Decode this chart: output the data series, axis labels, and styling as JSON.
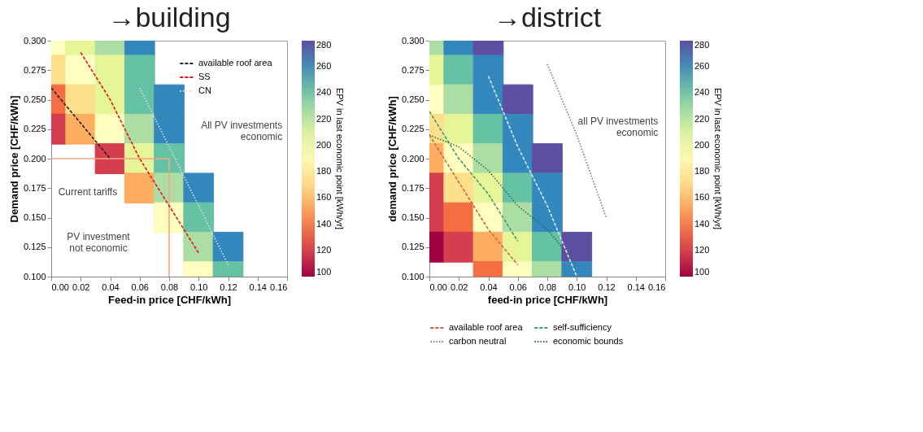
{
  "chart_data": [
    {
      "type": "scatter",
      "title": "→building",
      "xlabel": "Feed-in price [CHF/kWh]",
      "ylabel": "Demand price [CHF/kWh]",
      "clabel": "EPV in last economic point [kWh/yr]",
      "xlim": [
        0,
        0.16
      ],
      "ylim": [
        0.1,
        0.3
      ],
      "xticks": [
        {
          "value": 0,
          "label": "0.00"
        },
        {
          "value": 0.02,
          "label": "0.02"
        },
        {
          "value": 0.04,
          "label": "0.04"
        },
        {
          "value": 0.06,
          "label": "0.06"
        },
        {
          "value": 0.08,
          "label": "0.08"
        },
        {
          "value": 0.1,
          "label": "0.10"
        },
        {
          "value": 0.12,
          "label": "0.12"
        },
        {
          "value": 0.14,
          "label": "0.14"
        },
        {
          "value": 0.16,
          "label": "0.16"
        }
      ],
      "yticks": [
        {
          "value": 0.1,
          "label": "0.100"
        },
        {
          "value": 0.125,
          "label": "0.125"
        },
        {
          "value": 0.15,
          "label": "0.150"
        },
        {
          "value": 0.175,
          "label": "0.175"
        },
        {
          "value": 0.2,
          "label": "0.200"
        },
        {
          "value": 0.225,
          "label": "0.225"
        },
        {
          "value": 0.25,
          "label": "0.250"
        },
        {
          "value": 0.275,
          "label": "0.275"
        },
        {
          "value": 0.3,
          "label": "0.300"
        }
      ],
      "clim": [
        100,
        280
      ],
      "cticks": [
        100,
        120,
        140,
        160,
        180,
        200,
        220,
        240,
        260,
        280
      ],
      "marker": "square",
      "x": [
        0,
        0.02,
        0.04,
        0.06,
        0,
        0.02,
        0.04,
        0.06,
        0,
        0.02,
        0.04,
        0.06,
        0.08,
        0,
        0.02,
        0.04,
        0.06,
        0.08,
        0.04,
        0.06,
        0.08,
        0.06,
        0.08,
        0.1,
        0.08,
        0.1,
        0.1,
        0.12,
        0.1,
        0.12
      ],
      "values": [
        0.3,
        0.3,
        0.3,
        0.3,
        0.275,
        0.275,
        0.275,
        0.275,
        0.25,
        0.25,
        0.25,
        0.25,
        0.25,
        0.225,
        0.225,
        0.225,
        0.225,
        0.225,
        0.2,
        0.2,
        0.2,
        0.175,
        0.175,
        0.175,
        0.15,
        0.15,
        0.125,
        0.125,
        0.1,
        0.1
      ],
      "cvalues": [
        190,
        208,
        226,
        262,
        172,
        190,
        208,
        244,
        136,
        172,
        208,
        244,
        262,
        118,
        154,
        190,
        226,
        262,
        118,
        208,
        244,
        154,
        226,
        262,
        190,
        244,
        226,
        262,
        190,
        244
      ],
      "colors": [
        "#ffffbf",
        "#e6f598",
        "#abdda4",
        "#3288bd",
        "#fee08b",
        "#ffffbf",
        "#e6f598",
        "#66c2a5",
        "#f46d43",
        "#fee08b",
        "#e6f598",
        "#66c2a5",
        "#3288bd",
        "#d53e4f",
        "#fdae61",
        "#ffffbf",
        "#abdda4",
        "#3288bd",
        "#d53e4f",
        "#e6f598",
        "#66c2a5",
        "#fdae61",
        "#abdda4",
        "#3288bd",
        "#ffffbf",
        "#66c2a5",
        "#abdda4",
        "#3288bd",
        "#ffffbf",
        "#66c2a5"
      ],
      "series": [
        {
          "type": "line",
          "name": "available roof area",
          "color": "#222222",
          "line_style": "dashed",
          "marker": "none",
          "x": [
            0,
            0.02,
            0.04
          ],
          "values": [
            0.26,
            0.23,
            0.2
          ]
        },
        {
          "type": "line",
          "name": "SS",
          "color": "#ee1111",
          "line_style": "dashed",
          "marker": "none",
          "x": [
            0.02,
            0.04,
            0.06,
            0.08,
            0.1
          ],
          "values": [
            0.29,
            0.25,
            0.2,
            0.16,
            0.12
          ]
        },
        {
          "type": "line",
          "name": "CN",
          "color": "#dddddd",
          "line_style": "dotted",
          "marker": "none",
          "x": [
            0.06,
            0.08,
            0.1,
            0.12
          ],
          "values": [
            0.26,
            0.21,
            0.16,
            0.11
          ]
        },
        {
          "type": "line",
          "color": "#f4a582",
          "line_style": "solid",
          "marker": "none",
          "x": [
            0,
            0.08,
            0.08
          ],
          "values": [
            0.2,
            0.2,
            0.1
          ]
        }
      ],
      "annotations": [
        "All PV investments\neconomic",
        "Current tariffs",
        "PV investment\nnot economic"
      ],
      "legend": "top right"
    },
    {
      "type": "scatter",
      "title": "→district",
      "xlabel": "feed-in price [CHF/kWh]",
      "ylabel": "demand price [CHF/kWh]",
      "clabel": "EPV in last economic point [kWh/yr]",
      "xlim": [
        0,
        0.16
      ],
      "ylim": [
        0.1,
        0.3
      ],
      "xticks": [
        {
          "value": 0,
          "label": "0.00"
        },
        {
          "value": 0.02,
          "label": "0.02"
        },
        {
          "value": 0.04,
          "label": "0.04"
        },
        {
          "value": 0.06,
          "label": "0.06"
        },
        {
          "value": 0.08,
          "label": "0.08"
        },
        {
          "value": 0.1,
          "label": "0.10"
        },
        {
          "value": 0.12,
          "label": "0.12"
        },
        {
          "value": 0.14,
          "label": "0.14"
        },
        {
          "value": 0.16,
          "label": "0.16"
        }
      ],
      "yticks": [
        {
          "value": 0.1,
          "label": "0.100"
        },
        {
          "value": 0.125,
          "label": "0.125"
        },
        {
          "value": 0.15,
          "label": "0.150"
        },
        {
          "value": 0.175,
          "label": "0.175"
        },
        {
          "value": 0.2,
          "label": "0.200"
        },
        {
          "value": 0.225,
          "label": "0.225"
        },
        {
          "value": 0.25,
          "label": "0.250"
        },
        {
          "value": 0.275,
          "label": "0.275"
        },
        {
          "value": 0.3,
          "label": "0.300"
        }
      ],
      "clim": [
        100,
        280
      ],
      "cticks": [
        100,
        120,
        140,
        160,
        180,
        200,
        220,
        240,
        260,
        280
      ],
      "marker": "square",
      "x": [
        0,
        0.02,
        0.04,
        0,
        0.02,
        0.04,
        0,
        0.02,
        0.04,
        0.06,
        0,
        0.02,
        0.04,
        0.06,
        0,
        0.02,
        0.04,
        0.06,
        0.08,
        0,
        0.02,
        0.04,
        0.06,
        0.08,
        0,
        0.02,
        0.04,
        0.06,
        0.08,
        0,
        0.02,
        0.04,
        0.06,
        0.08,
        0.1,
        0.04,
        0.06,
        0.08,
        0.1
      ],
      "values": [
        0.3,
        0.3,
        0.3,
        0.275,
        0.275,
        0.275,
        0.25,
        0.25,
        0.25,
        0.25,
        0.225,
        0.225,
        0.225,
        0.225,
        0.2,
        0.2,
        0.2,
        0.2,
        0.2,
        0.175,
        0.175,
        0.175,
        0.175,
        0.175,
        0.15,
        0.15,
        0.15,
        0.15,
        0.15,
        0.125,
        0.125,
        0.125,
        0.125,
        0.125,
        0.125,
        0.1,
        0.1,
        0.1,
        0.1
      ],
      "cvalues": [
        226,
        262,
        280,
        208,
        244,
        262,
        190,
        226,
        262,
        280,
        172,
        208,
        244,
        262,
        154,
        190,
        226,
        262,
        280,
        118,
        172,
        208,
        244,
        262,
        118,
        136,
        190,
        226,
        262,
        100,
        118,
        154,
        208,
        244,
        280,
        136,
        190,
        226,
        262
      ],
      "colors": [
        "#abdda4",
        "#3288bd",
        "#5e4fa2",
        "#e6f598",
        "#66c2a5",
        "#3288bd",
        "#ffffbf",
        "#abdda4",
        "#3288bd",
        "#5e4fa2",
        "#fee08b",
        "#e6f598",
        "#66c2a5",
        "#3288bd",
        "#fdae61",
        "#ffffbf",
        "#abdda4",
        "#3288bd",
        "#5e4fa2",
        "#d53e4f",
        "#fee08b",
        "#e6f598",
        "#66c2a5",
        "#3288bd",
        "#d53e4f",
        "#f46d43",
        "#ffffbf",
        "#abdda4",
        "#3288bd",
        "#9e0142",
        "#d53e4f",
        "#fdae61",
        "#e6f598",
        "#66c2a5",
        "#5e4fa2",
        "#f46d43",
        "#ffffbf",
        "#abdda4",
        "#3288bd"
      ],
      "series": [
        {
          "type": "line",
          "name": "available roof area",
          "color": "#d6604d",
          "line_style": "dashed",
          "marker": "none",
          "x": [
            0,
            0.02,
            0.04,
            0.06
          ],
          "values": [
            0.22,
            0.18,
            0.14,
            0.11
          ]
        },
        {
          "type": "line",
          "name": "self-sufficiency",
          "color": "#3a9a7a",
          "line_style": "dashed",
          "marker": "none",
          "x": [
            0,
            0.02,
            0.04,
            0.06
          ],
          "values": [
            0.24,
            0.2,
            0.17,
            0.13
          ]
        },
        {
          "type": "line",
          "name": "carbon neutral",
          "color": "#777777",
          "line_style": "dotted",
          "marker": "none",
          "x": [
            0.08,
            0.1,
            0.12
          ],
          "values": [
            0.28,
            0.22,
            0.15
          ]
        },
        {
          "type": "line",
          "name": "economic bounds",
          "color": "#2e6b4f",
          "line_style": "dotted",
          "marker": "none",
          "x": [
            0,
            0.02,
            0.04,
            0.06,
            0.08,
            0.1
          ],
          "values": [
            0.22,
            0.21,
            0.19,
            0.16,
            0.14,
            0.11
          ]
        },
        {
          "type": "line",
          "color": "#d8e8f0",
          "line_style": "dashed",
          "marker": "none",
          "x": [
            0.04,
            0.06,
            0.08,
            0.1
          ],
          "values": [
            0.27,
            0.21,
            0.16,
            0.1
          ]
        }
      ],
      "annotations": [
        "all PV investments\neconomic"
      ],
      "legend": "bottom"
    }
  ]
}
